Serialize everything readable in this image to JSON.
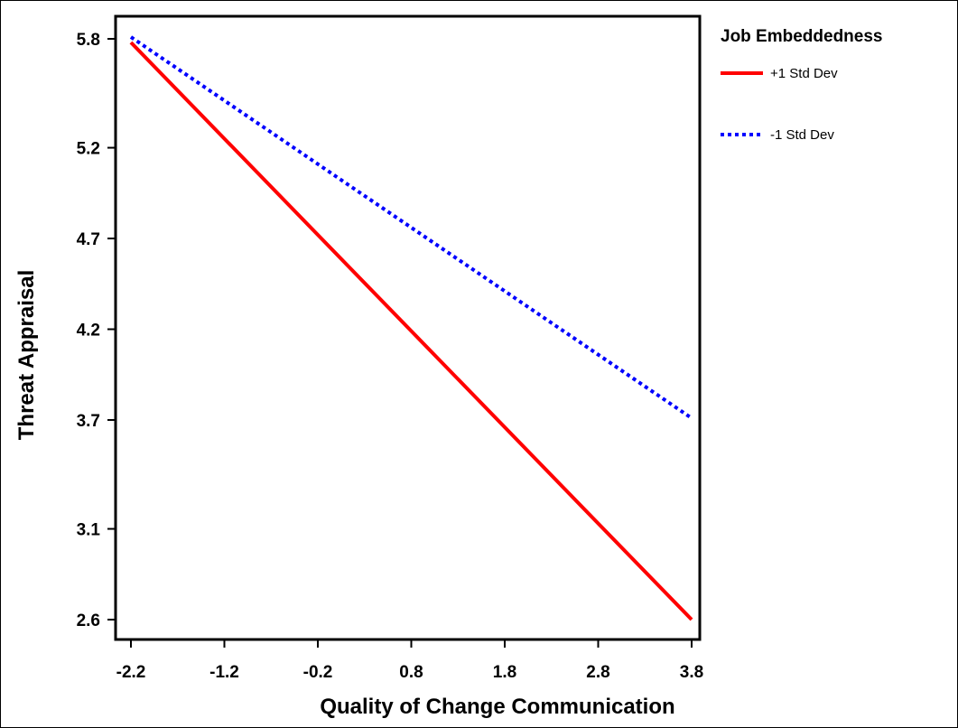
{
  "chart_data": {
    "type": "line",
    "xlabel": "Quality of Change Communication",
    "ylabel": "Threat Appraisal",
    "x_ticks": [
      -2.2,
      -1.2,
      -0.2,
      0.8,
      1.8,
      2.8,
      3.8
    ],
    "x_tick_labels": [
      "-2.2",
      "-1.2",
      "-0.2",
      "0.8",
      "1.8",
      "2.8",
      "3.8"
    ],
    "y_ticks": [
      2.6,
      3.1,
      3.7,
      4.2,
      4.7,
      5.2,
      5.8
    ],
    "y_tick_labels": [
      "2.6",
      "3.1",
      "3.7",
      "4.2",
      "4.7",
      "5.2",
      "5.8"
    ],
    "xlim": [
      -2.2,
      3.8
    ],
    "ylim": [
      2.6,
      5.8
    ],
    "legend": {
      "title": "Job Embeddedness",
      "position": "right"
    },
    "series": [
      {
        "name": "+1 Std Dev",
        "color": "#ff0000",
        "style": "solid",
        "x": [
          -2.2,
          3.8
        ],
        "y": [
          5.78,
          2.6
        ]
      },
      {
        "name": "-1 Std Dev",
        "color": "#0000ff",
        "style": "dotted",
        "x": [
          -2.2,
          3.8
        ],
        "y": [
          5.81,
          3.71
        ]
      }
    ],
    "grid": false
  }
}
